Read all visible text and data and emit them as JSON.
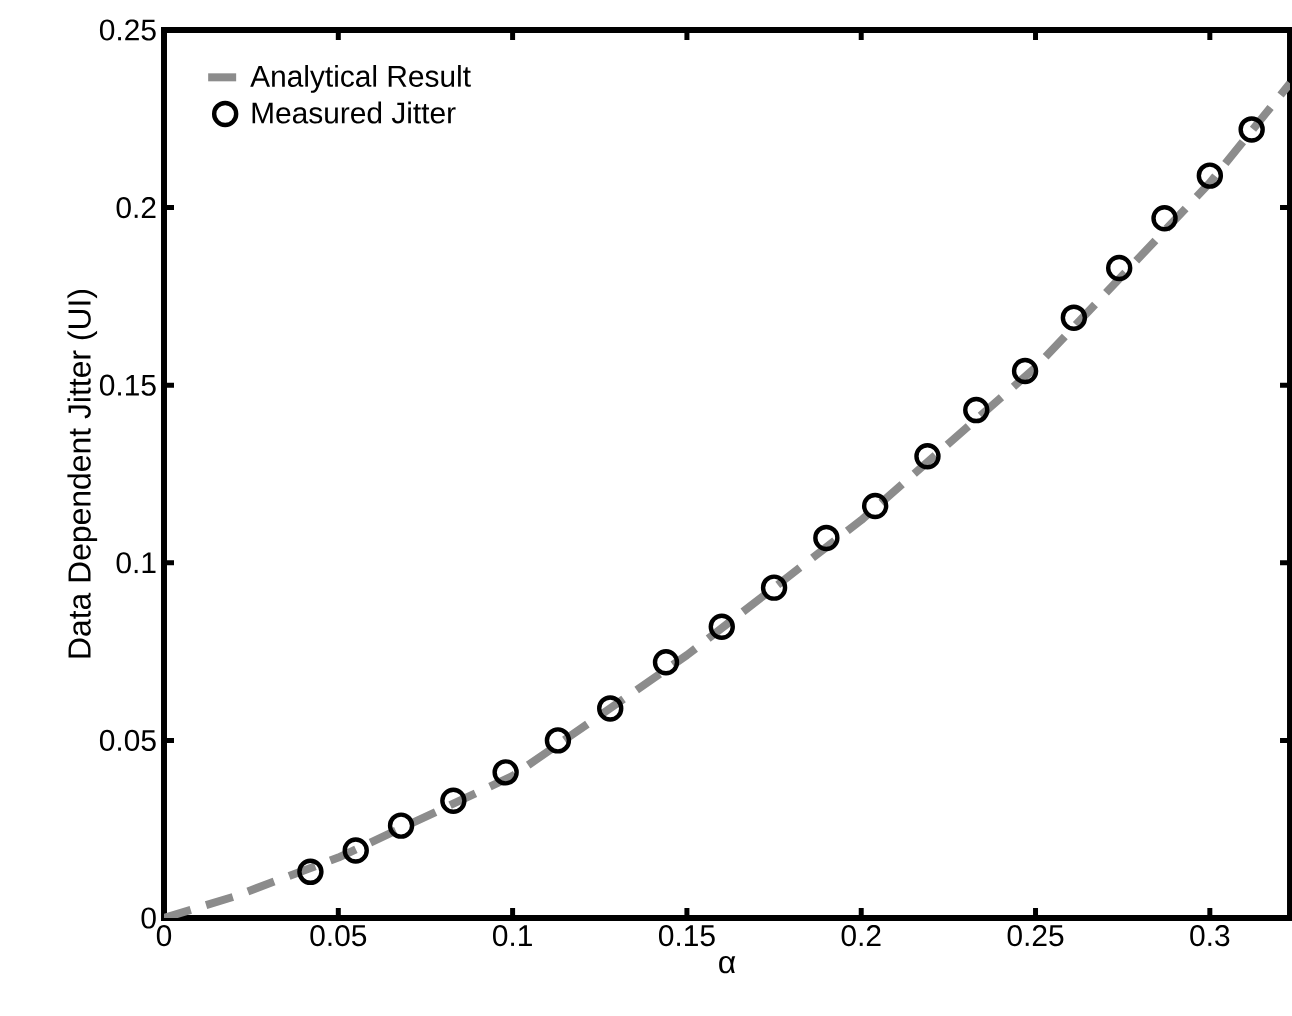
{
  "chart_data": {
    "type": "scatter",
    "xlabel": "α",
    "ylabel": "Data Dependent Jitter (UI)",
    "xlim": [
      0,
      0.323
    ],
    "ylim": [
      0,
      0.25
    ],
    "xticks": [
      0,
      0.05,
      0.1,
      0.15,
      0.2,
      0.25,
      0.3
    ],
    "yticks": [
      0,
      0.05,
      0.1,
      0.15,
      0.2,
      0.25
    ],
    "legend": "top left",
    "grid": false,
    "series": [
      {
        "name": "Analytical Result",
        "type": "line",
        "line_style": "dashed",
        "marker": "none",
        "color": "#8c8c8c",
        "x": [
          0,
          0.02,
          0.05,
          0.1,
          0.15,
          0.2,
          0.25,
          0.3,
          0.323
        ],
        "values": [
          0,
          0.006,
          0.017,
          0.04,
          0.074,
          0.112,
          0.155,
          0.207,
          0.235
        ]
      },
      {
        "name": "Measured Jitter",
        "marker": "circle",
        "color": "#000000",
        "x": [
          0.042,
          0.055,
          0.068,
          0.083,
          0.098,
          0.113,
          0.128,
          0.144,
          0.16,
          0.175,
          0.19,
          0.204,
          0.219,
          0.233,
          0.247,
          0.261,
          0.274,
          0.287,
          0.3,
          0.312
        ],
        "values": [
          0.013,
          0.019,
          0.026,
          0.033,
          0.041,
          0.05,
          0.059,
          0.072,
          0.082,
          0.093,
          0.107,
          0.116,
          0.13,
          0.143,
          0.154,
          0.169,
          0.183,
          0.197,
          0.209,
          0.222
        ]
      }
    ]
  }
}
